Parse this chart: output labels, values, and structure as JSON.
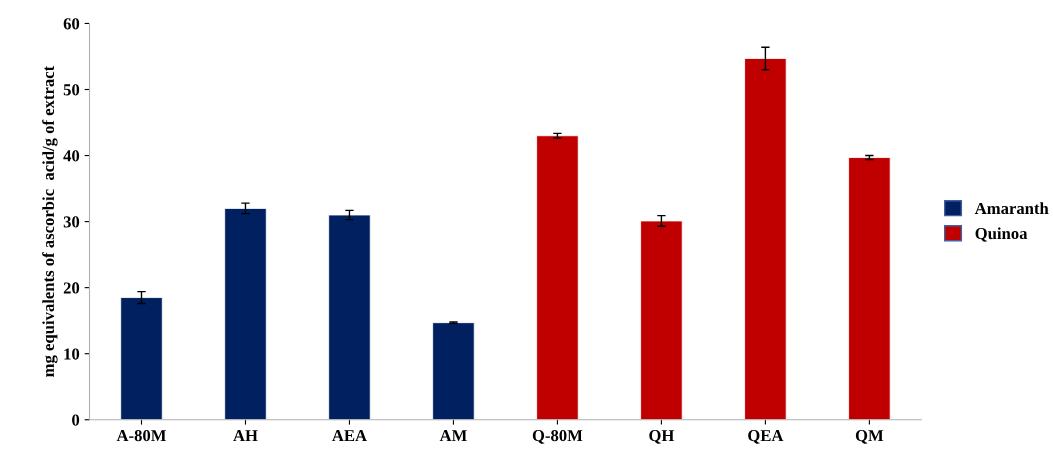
{
  "chart_data": {
    "type": "bar",
    "ylabel": "mg equivalents of ascorbic  acid/g of extract",
    "categories": [
      "A-80M",
      "AH",
      "AEA",
      "AM",
      "Q-80M",
      "QH",
      "QEA",
      "QM"
    ],
    "series": [
      {
        "name": "Amaranth",
        "color": "#002060",
        "values": [
          18.5,
          32.0,
          31.0,
          14.7,
          null,
          null,
          null,
          null
        ],
        "errors": [
          0.9,
          0.8,
          0.7,
          0.1,
          null,
          null,
          null,
          null
        ]
      },
      {
        "name": "Quinoa",
        "color": "#c00000",
        "values": [
          null,
          null,
          null,
          null,
          43.0,
          30.1,
          54.7,
          39.7
        ],
        "errors": [
          null,
          null,
          null,
          null,
          0.35,
          0.8,
          1.7,
          0.3
        ]
      }
    ],
    "ylim": [
      0,
      60
    ],
    "yticks": [
      0,
      10,
      20,
      30,
      40,
      50,
      60
    ],
    "grid": false,
    "legend": "right"
  }
}
